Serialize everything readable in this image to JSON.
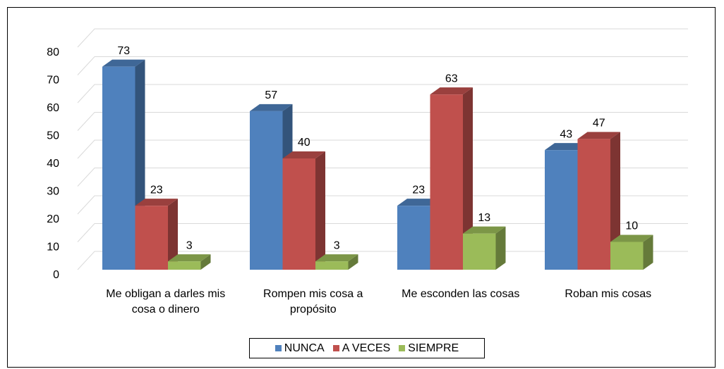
{
  "chart_data": {
    "type": "bar3d",
    "categories": [
      "Me obligan a darles mis cosa o dinero",
      "Rompen mis cosa a propósito",
      "Me esconden las cosas",
      "Roban mis cosas"
    ],
    "series": [
      {
        "name": "NUNCA",
        "color": "#4f81bd",
        "values": [
          73,
          57,
          23,
          43
        ]
      },
      {
        "name": "A VECES",
        "color": "#c0504d",
        "values": [
          23,
          40,
          63,
          47
        ]
      },
      {
        "name": "SIEMPRE",
        "color": "#9bbb59",
        "values": [
          3,
          3,
          13,
          10
        ]
      }
    ],
    "ylim": [
      0,
      80
    ],
    "yticks": [
      0,
      10,
      20,
      30,
      40,
      50,
      60,
      70,
      80
    ],
    "grid": true,
    "legend": "bottom"
  }
}
